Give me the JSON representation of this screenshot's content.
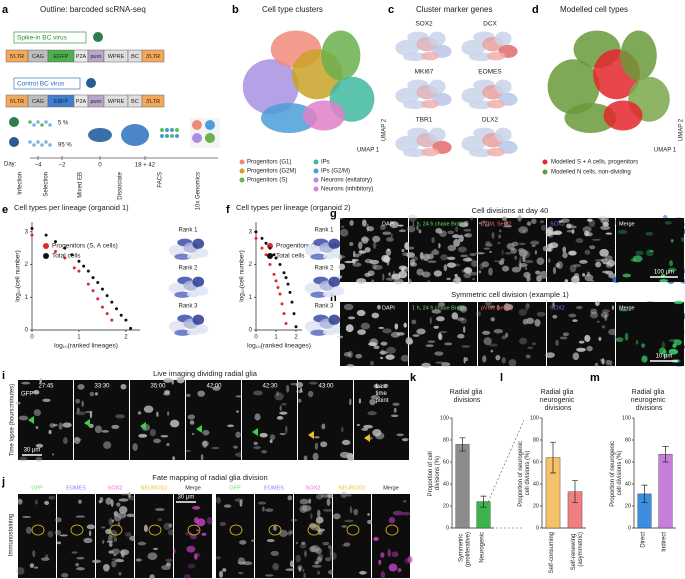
{
  "panel_labels": [
    "a",
    "b",
    "c",
    "d",
    "e",
    "f",
    "g",
    "h",
    "i",
    "j",
    "k",
    "l",
    "m"
  ],
  "a": {
    "title": "Outline: barcoded scRNA-seq",
    "spike_in": "Spike-in BC virus",
    "control": "Control BC virus",
    "spike_construct": [
      "5'LTR",
      "CAG",
      "EGFP",
      "P2A",
      "puro",
      "WPRE",
      "BC",
      "3'LTR"
    ],
    "control_construct": [
      "5'LTR",
      "CAG",
      "EBFP",
      "P2A",
      "puro",
      "WPRE",
      "BC",
      "3'LTR"
    ],
    "pct_top": "5 %",
    "pct_bottom": "95 %",
    "day_label": "Day:",
    "days": [
      "−4",
      "−2",
      "0",
      "18 + 42"
    ],
    "steps": [
      "Infection",
      "Selection",
      "Mixed EB",
      "Dissociate",
      "FACS",
      "10x Genomics"
    ]
  },
  "b": {
    "title": "Cell type clusters",
    "axis_x": "UMAP 1",
    "axis_y": "UMAP 2",
    "legend": [
      "Progenitors (G1)",
      "Progenitors (G2M)",
      "Progenitors (S)",
      "IPs",
      "IPs (G2/M)",
      "Neurons (exitatory)",
      "Neurons (inhibitory)"
    ],
    "colors": [
      "#f08a7a",
      "#c9a227",
      "#6ab04c",
      "#3fb8a0",
      "#4a9fd8",
      "#a890e0",
      "#e080c8"
    ]
  },
  "c": {
    "title": "Cluster marker genes",
    "genes": [
      "SOX2",
      "DCX",
      "MKI67",
      "EOMES",
      "TBR1",
      "DLX2"
    ]
  },
  "d": {
    "title": "Modelled cell types",
    "axis_x": "UMAP 1",
    "axis_y": "UMAP 2",
    "legend": [
      "Modelled S + A cells, progenitors",
      "Modelled N cells, non-dividing"
    ],
    "colors": [
      "#e3262c",
      "#6a9a3a"
    ]
  },
  "e": {
    "ranks": [
      "Rank 1",
      "Rank 2",
      "Rank 3"
    ]
  },
  "f": {
    "ranks": [
      "Rank 1",
      "Rank 2",
      "Rank 3"
    ]
  },
  "g": {
    "title": "Cell divisions at day 40",
    "channels": [
      "DAPI",
      "1 h, 24 h chase BrdU",
      "pVIM, Ser82",
      "SOX2",
      "Merge"
    ],
    "scale": "100 µm"
  },
  "h": {
    "title": "Symmetric cell division (example 1)",
    "channels": [
      "DAPI",
      "1 h, 24 h chase BrdU",
      "pVIM, Ser82",
      "SOX2",
      "Merge"
    ],
    "scale": "10 µm"
  },
  "i": {
    "title": "Live imaging dividing radial glia",
    "channel": "GFP",
    "times": [
      "27:45",
      "33:30",
      "35:00",
      "42:00",
      "42:30",
      "43:00",
      "Last time point"
    ],
    "axis": "Time lapse (hours:minutes)",
    "scale": "30 µm"
  },
  "j": {
    "title": "Fate mapping of radial glia division",
    "channels": [
      "GFP",
      "EOMES",
      "SOX2",
      "NEUROD2",
      "Merge"
    ],
    "side": "Immunostaining",
    "scale": "30 µm"
  },
  "chart_data": [
    {
      "type": "scatter",
      "title": "Cell types per lineage (organoid 1)",
      "xlabel": "log₁₀(ranked lineages)",
      "ylabel": "log₁₀(cell number)",
      "xlim": [
        0,
        2.3
      ],
      "ylim": [
        0,
        3.3
      ],
      "xticks": [
        0,
        1,
        2
      ],
      "yticks": [
        0,
        1,
        2,
        3
      ],
      "series": [
        {
          "name": "Progenitors (S, A cells)",
          "color": "#e3262c",
          "x": [
            0,
            0.3,
            0.5,
            0.7,
            0.9,
            1.0,
            1.2,
            1.3,
            1.4,
            1.5,
            1.6,
            1.7
          ],
          "values": [
            2.9,
            2.6,
            2.4,
            2.2,
            1.9,
            1.8,
            1.4,
            1.2,
            0.95,
            0.7,
            0.5,
            0.3
          ]
        },
        {
          "name": "Total cells",
          "color": "#111111",
          "x": [
            0,
            0.3,
            0.5,
            0.7,
            0.85,
            1.0,
            1.1,
            1.2,
            1.3,
            1.4,
            1.5,
            1.6,
            1.7,
            1.8,
            1.9,
            2.0,
            2.1
          ],
          "values": [
            3.1,
            2.9,
            2.7,
            2.5,
            2.3,
            2.1,
            1.95,
            1.8,
            1.6,
            1.45,
            1.25,
            1.05,
            0.85,
            0.65,
            0.45,
            0.3,
            0.05
          ]
        }
      ]
    },
    {
      "type": "scatter",
      "title": "Cell types per lineage (organoid 2)",
      "xlabel": "log₁₀(ranked lineages)",
      "ylabel": "log₁₀(cell number)",
      "xlim": [
        0,
        2.3
      ],
      "ylim": [
        0,
        3.3
      ],
      "xticks": [
        0,
        1,
        2
      ],
      "yticks": [
        0,
        1,
        2,
        3
      ],
      "series": [
        {
          "name": "Progenitors (S, A cells)",
          "color": "#e3262c",
          "x": [
            0,
            0.3,
            0.5,
            0.7,
            0.9,
            1.0,
            1.1,
            1.2,
            1.3,
            1.4,
            1.5
          ],
          "values": [
            2.8,
            2.5,
            2.3,
            2.0,
            1.7,
            1.5,
            1.3,
            1.1,
            0.8,
            0.5,
            0.2
          ]
        },
        {
          "name": "Total cells",
          "color": "#111111",
          "x": [
            0,
            0.3,
            0.5,
            0.7,
            0.9,
            1.0,
            1.2,
            1.4,
            1.5,
            1.6,
            1.7,
            1.8,
            1.9,
            2.0
          ],
          "values": [
            3.0,
            2.8,
            2.65,
            2.5,
            2.3,
            2.2,
            2.0,
            1.75,
            1.6,
            1.4,
            1.15,
            0.85,
            0.5,
            0.1
          ]
        }
      ]
    },
    {
      "type": "bar",
      "title": "Radial glia divisions",
      "ylabel": "Proportion of cell divisions (%)",
      "categories": [
        "Symmetric (proliferative)",
        "Neurogenic"
      ],
      "values": [
        76,
        24
      ],
      "errors": [
        6,
        5
      ],
      "colors": [
        "#8c8c8c",
        "#3cb44b"
      ],
      "ylim": [
        0,
        100
      ],
      "yticks": [
        0,
        20,
        40,
        60,
        80,
        100
      ]
    },
    {
      "type": "bar",
      "title": "Radial glia neurogenic divisions",
      "ylabel": "Proportion of neurogenic cell divisions (%)",
      "categories": [
        "Self-consuming",
        "Self-renewing (asymmetric)"
      ],
      "values": [
        64,
        33
      ],
      "errors": [
        14,
        10
      ],
      "colors": [
        "#f5c26b",
        "#f08080"
      ],
      "ylim": [
        0,
        100
      ],
      "yticks": [
        0,
        20,
        40,
        60,
        80,
        100
      ]
    },
    {
      "type": "bar",
      "title": "Radial glia neurogenic divisions",
      "ylabel": "Proportion of neurogenic cell divisions (%)",
      "categories": [
        "Direct",
        "Indirect"
      ],
      "values": [
        31,
        67
      ],
      "errors": [
        8,
        7
      ],
      "colors": [
        "#3b8ee0",
        "#c77ddb"
      ],
      "ylim": [
        0,
        100
      ],
      "yticks": [
        0,
        20,
        40,
        60,
        80,
        100
      ]
    }
  ]
}
